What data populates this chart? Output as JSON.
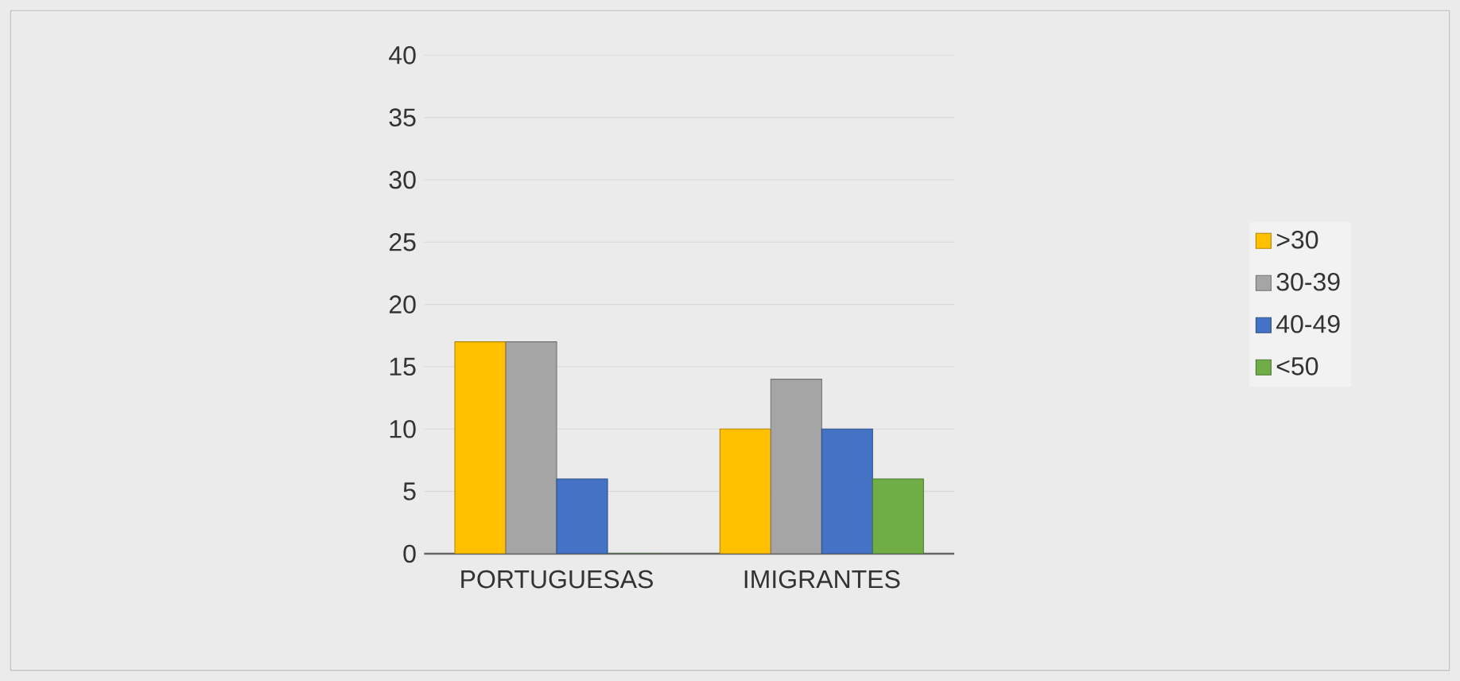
{
  "chart_data": {
    "type": "bar",
    "categories": [
      "PORTUGUESAS",
      "IMIGRANTES"
    ],
    "series": [
      {
        "name": ">30",
        "color": "#ffc000",
        "values": [
          17,
          10
        ]
      },
      {
        "name": "30-39",
        "color": "#a5a5a5",
        "values": [
          17,
          14
        ]
      },
      {
        "name": "40-49",
        "color": "#4472c4",
        "values": [
          6,
          10
        ]
      },
      {
        "name": "<50",
        "color": "#70ad47",
        "values": [
          0,
          6
        ]
      }
    ],
    "ylim": [
      0,
      40
    ],
    "yticks": [
      0,
      5,
      10,
      15,
      20,
      25,
      30,
      35,
      40
    ],
    "grid": "y",
    "legend": "right"
  }
}
